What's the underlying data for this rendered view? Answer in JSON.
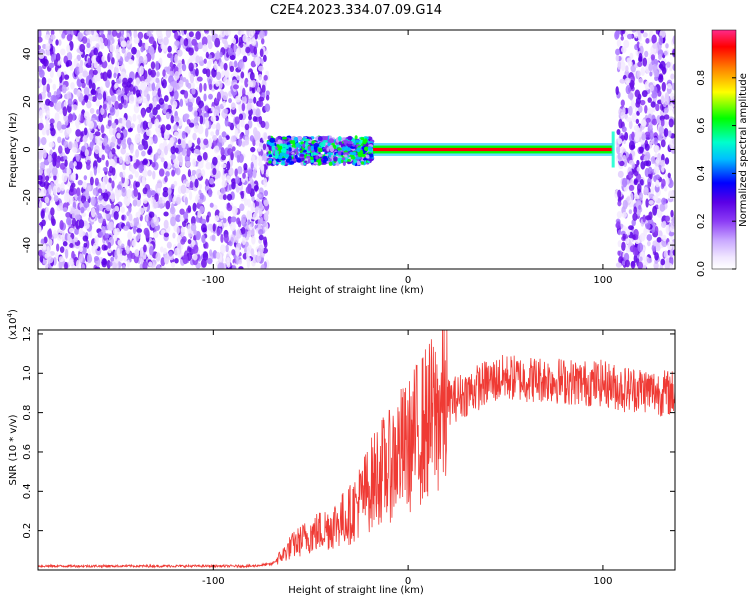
{
  "title": "C2E4.2023.334.07.09.G14",
  "colors": {
    "snr_line": "#ef3a34",
    "spectrogram_scatter": "#7a2cf0",
    "colormap": [
      "#ffffff",
      "#f0e6ff",
      "#c9a8ff",
      "#8c3cf5",
      "#5a00e6",
      "#0000ff",
      "#00bfff",
      "#00ffcc",
      "#00ff00",
      "#ffff00",
      "#ff8000",
      "#ff0000",
      "#ff2a8a"
    ]
  },
  "chart_data": [
    {
      "type": "heatmap",
      "title": "C2E4.2023.334.07.09.G14",
      "xlabel": "Height of straight line (km)",
      "ylabel": "Frequency (Hz)",
      "xlim": [
        -190,
        137
      ],
      "ylim": [
        -50,
        50
      ],
      "x_ticks": [
        -100,
        0,
        100
      ],
      "x_tick_labels": [
        "-100",
        "0",
        "100"
      ],
      "y_ticks": [
        -40,
        -20,
        0,
        20,
        40
      ],
      "y_tick_labels": [
        "-40",
        "-20",
        "0",
        "20",
        "40"
      ],
      "colorbar": {
        "label": "Normalized spectral amplitude",
        "range": [
          0,
          1
        ],
        "ticks": [
          0.0,
          0.2,
          0.4,
          0.6,
          0.8
        ],
        "tick_labels": [
          "0.0",
          "0.2",
          "0.4",
          "0.6",
          "0.8"
        ]
      },
      "regions": [
        {
          "name": "noise",
          "x_range": [
            -190,
            -72
          ],
          "freq_range": [
            -50,
            50
          ]
        },
        {
          "name": "signal_onset",
          "x_range": [
            -72,
            -18
          ],
          "freq_range": [
            -6,
            5
          ]
        },
        {
          "name": "tone",
          "x_range": [
            -18,
            105
          ],
          "center_freq": 0,
          "freq_halfwidth": 1.5
        },
        {
          "name": "noise",
          "x_range": [
            107,
            137
          ],
          "freq_range": [
            -50,
            50
          ]
        }
      ]
    },
    {
      "type": "line",
      "xlabel": "Height of straight line (km)",
      "ylabel": "SNR (10 * v/v)",
      "y_multiplier_label": "(x10",
      "y_multiplier_exp": "4",
      "xlim": [
        -190,
        137
      ],
      "ylim": [
        0,
        1.22
      ],
      "x_ticks": [
        -100,
        0,
        100
      ],
      "x_tick_labels": [
        "-100",
        "0",
        "100"
      ],
      "y_ticks": [
        0.2,
        0.4,
        0.6,
        0.8,
        1.0,
        1.2
      ],
      "y_tick_labels": [
        "0.2",
        "0.4",
        "0.6",
        "0.8",
        "1.0",
        "1.2"
      ],
      "series": [
        {
          "x": [
            -190,
            -150,
            -100,
            -80,
            -70,
            -64,
            -60,
            -50,
            -40,
            -30,
            -20,
            -15,
            -10,
            -5,
            0,
            5,
            10,
            15,
            20,
            30,
            40,
            50,
            60,
            70,
            80,
            90,
            100,
            110,
            120,
            130,
            137
          ],
          "y": [
            0.02,
            0.02,
            0.02,
            0.02,
            0.03,
            0.08,
            0.12,
            0.18,
            0.22,
            0.28,
            0.42,
            0.5,
            0.52,
            0.6,
            0.62,
            0.7,
            0.75,
            0.8,
            0.85,
            0.9,
            0.95,
            0.98,
            0.97,
            0.97,
            0.96,
            0.95,
            0.95,
            0.92,
            0.92,
            0.9,
            0.9
          ]
        }
      ]
    }
  ]
}
